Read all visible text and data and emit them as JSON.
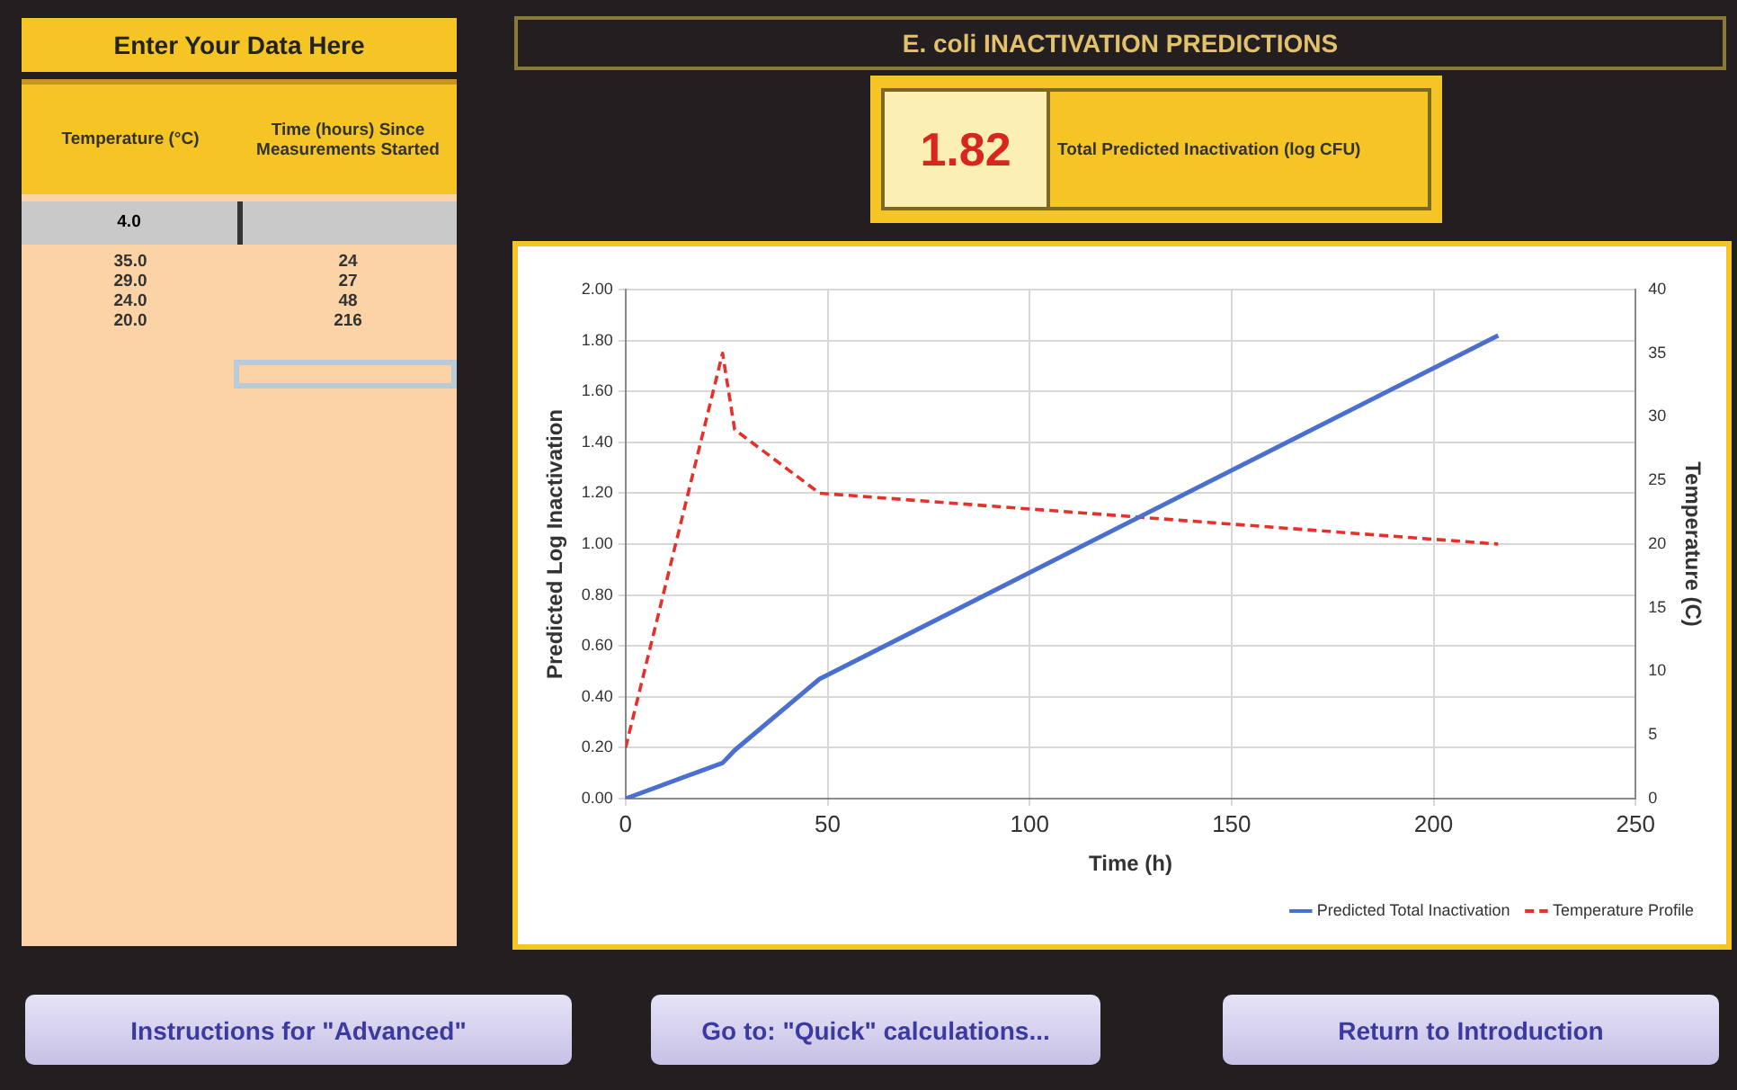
{
  "chart_data": {
    "type": "line",
    "title": "E. coli INACTIVATION PREDICTIONS",
    "xlabel": "Time (h)",
    "ylabel": "Predicted Log Inactivation",
    "y2label": "Temperature (C)",
    "series": [
      {
        "name": "Predicted Total Inactivation",
        "color": "#4a6fd0",
        "x": [
          0,
          24,
          27,
          48,
          216
        ],
        "values": [
          0,
          0.14,
          0.19,
          0.47,
          1.82
        ],
        "line_style": "solid"
      },
      {
        "name": "Temperature Profile",
        "color": "#e8302a",
        "x": [
          0,
          24,
          27,
          48,
          216
        ],
        "values": [
          4,
          35,
          29,
          24,
          20
        ],
        "axis": "y2",
        "line_style": "dashed"
      }
    ],
    "xlim": [
      0,
      250
    ],
    "xticks": [
      0,
      50,
      100,
      150,
      200,
      250
    ],
    "ylim": [
      0,
      2
    ],
    "yticks": [
      {
        "value": 0,
        "label": "0.00"
      },
      {
        "value": 0.2,
        "label": "0.20"
      },
      {
        "value": 0.4,
        "label": "0.40"
      },
      {
        "value": 0.6,
        "label": "0.60"
      },
      {
        "value": 0.8,
        "label": "0.80"
      },
      {
        "value": 1,
        "label": "1.00"
      },
      {
        "value": 1.2,
        "label": "1.20"
      },
      {
        "value": 1.4,
        "label": "1.40"
      },
      {
        "value": 1.6,
        "label": "1.60"
      },
      {
        "value": 1.8,
        "label": "1.80"
      },
      {
        "value": 2,
        "label": "2.00"
      }
    ],
    "y2lim": [
      0,
      40
    ],
    "y2ticks": [
      0,
      5,
      10,
      15,
      20,
      25,
      30,
      35,
      40
    ],
    "grid": true,
    "legend": "bottom right",
    "marker": "none",
    "annotations": [
      "Enter Your Data Here",
      "Temperature (°C)",
      "Time (hours) Since Measurements Started",
      "4.0",
      "35.0",
      "24",
      "29.0",
      "27",
      "24.0",
      "48",
      "20.0",
      "216",
      "1.82",
      "Total Predicted Inactivation (log CFU)",
      "Instructions for \"Advanced\"",
      "Go to: \"Quick\" calculations...",
      "Return to Introduction"
    ]
  }
}
